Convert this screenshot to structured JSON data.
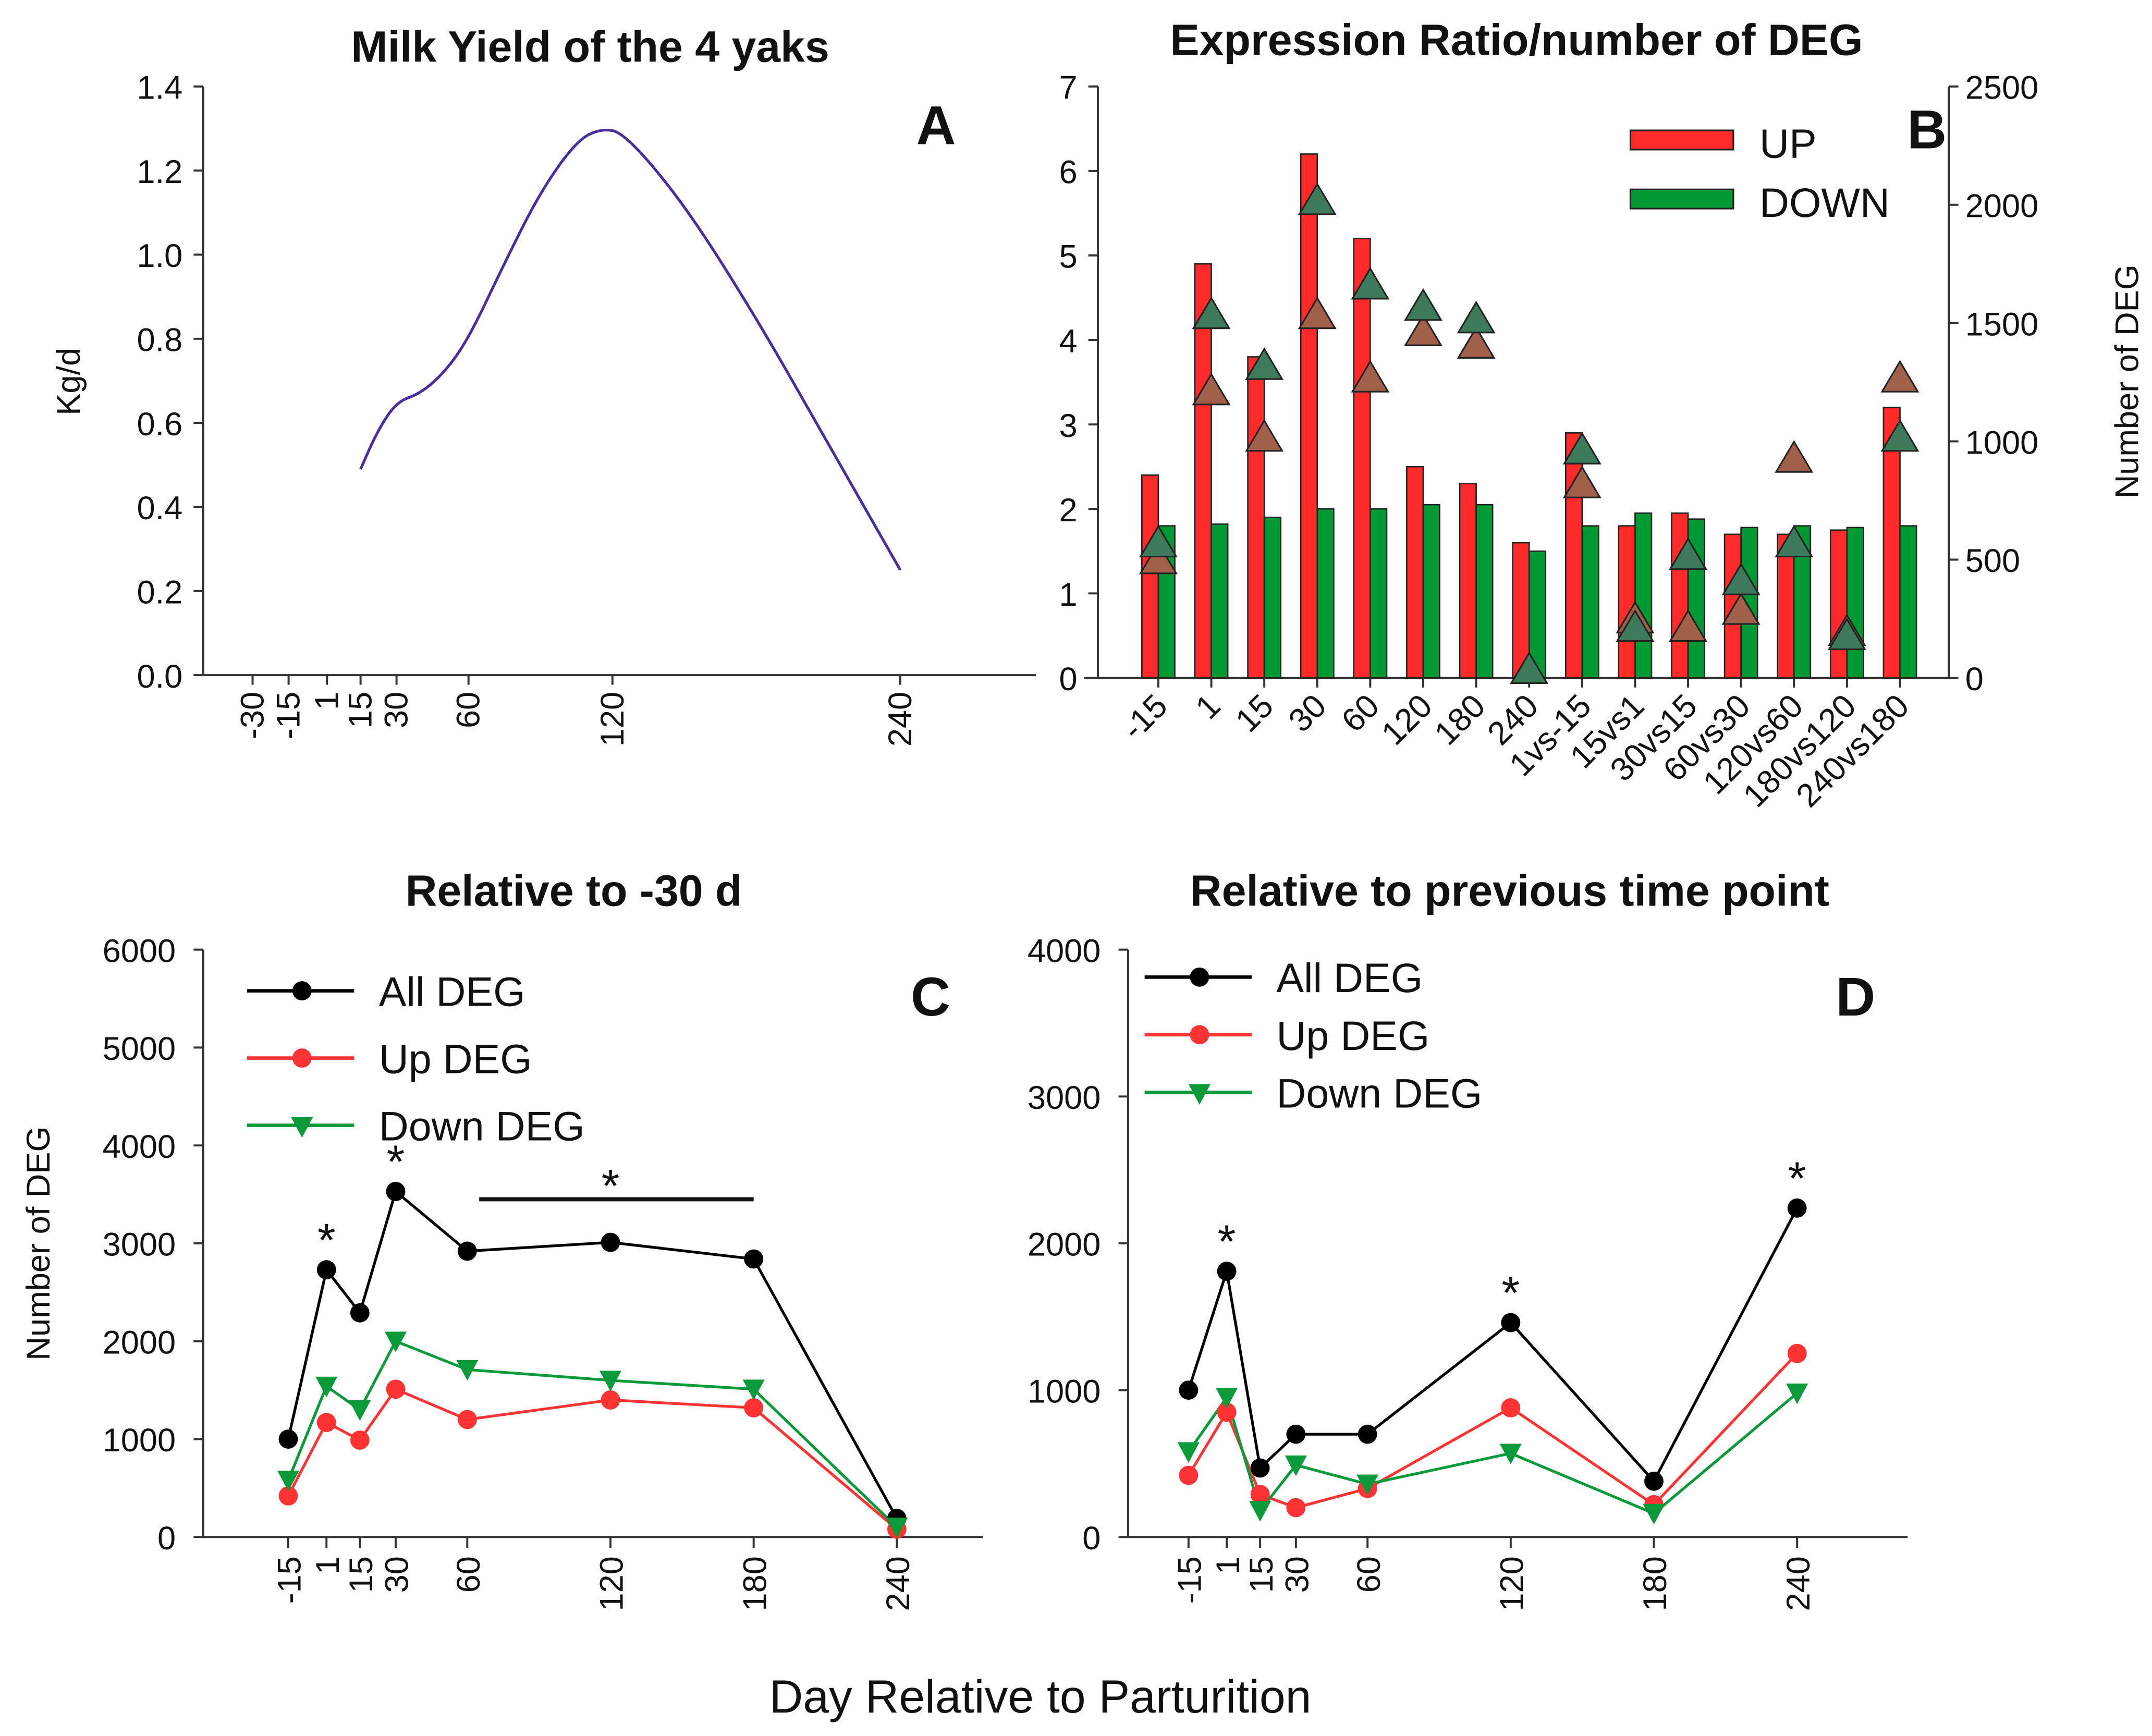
{
  "chart_data": [
    {
      "panel": "A",
      "type": "line",
      "title": "Milk Yield of the 4 yaks",
      "ylabel": "Kg/d",
      "xlabel": "",
      "ylim": [
        0,
        1.4
      ],
      "xlim": [
        -50,
        290
      ],
      "yticks": [
        "0.0",
        "0.2",
        "0.4",
        "0.6",
        "0.8",
        "1.0",
        "1.2",
        "1.4"
      ],
      "xticks": [
        "-30",
        "-15",
        "1",
        "15",
        "30",
        "60",
        "120",
        "240"
      ],
      "x": [
        15,
        22,
        30,
        40,
        50,
        60,
        75,
        90,
        105,
        115,
        125,
        150,
        180,
        210,
        240
      ],
      "y": [
        0.49,
        0.58,
        0.65,
        0.67,
        0.72,
        0.8,
        0.98,
        1.15,
        1.27,
        1.3,
        1.29,
        1.12,
        0.85,
        0.55,
        0.25
      ],
      "series_color": "#4b2e9e"
    },
    {
      "panel": "B",
      "type": "bar",
      "title": "Expression Ratio/number of DEG",
      "ylabel": "",
      "y2label": "Number of DEG",
      "ylim": [
        0,
        7
      ],
      "y2lim": [
        0,
        2500
      ],
      "yticks": [
        "0",
        "1",
        "2",
        "3",
        "4",
        "5",
        "6",
        "7"
      ],
      "y2ticks": [
        "0",
        "500",
        "1000",
        "1500",
        "2000",
        "2500"
      ],
      "categories": [
        "-15",
        "1",
        "15",
        "30",
        "60",
        "120",
        "180",
        "240",
        "1vs-15",
        "15vs1",
        "30vs15",
        "60vs30",
        "120vs60",
        "180vs120",
        "240vs180"
      ],
      "series": [
        {
          "name": "UP",
          "color": "#ff2a2a",
          "values": [
            2.4,
            4.9,
            3.8,
            6.2,
            5.2,
            2.5,
            2.3,
            1.6,
            2.9,
            1.8,
            1.95,
            1.7,
            1.7,
            1.75,
            3.2
          ]
        },
        {
          "name": "DOWN",
          "color": "#009933",
          "values": [
            1.8,
            1.82,
            1.9,
            2.0,
            2.0,
            2.05,
            2.05,
            1.5,
            1.8,
            1.95,
            1.88,
            1.78,
            1.8,
            1.78,
            1.8
          ]
        }
      ],
      "triangles_green": {
        "color": "#3d7a5a",
        "values": [
          571,
          1536,
          1321,
          2018,
          1661,
          1571,
          1518,
          36,
          964,
          214,
          518,
          411,
          571,
          179,
          1018
        ]
      },
      "triangles_brown": {
        "color": "#a0604a",
        "values": [
          500,
          1214,
          1018,
          1536,
          1268,
          1464,
          1411,
          null,
          821,
          250,
          214,
          286,
          929,
          196,
          1268
        ]
      },
      "legend": "top-right"
    },
    {
      "panel": "C",
      "type": "line",
      "title": "Relative to -30 d",
      "ylabel": "Number of DEG",
      "ylim": [
        0,
        6000
      ],
      "yticks": [
        "0",
        "1000",
        "2000",
        "3000",
        "4000",
        "5000",
        "6000"
      ],
      "x": [
        -15,
        1,
        15,
        30,
        60,
        120,
        180,
        240
      ],
      "xticks": [
        "-15",
        "1",
        "15",
        "30",
        "60",
        "120",
        "180",
        "240"
      ],
      "series": [
        {
          "name": "All DEG",
          "color": "#000000",
          "marker": "circle",
          "values": [
            1000,
            2730,
            2290,
            3530,
            2920,
            3010,
            2840,
            190
          ]
        },
        {
          "name": "Up DEG",
          "color": "#ff3333",
          "marker": "circle",
          "values": [
            420,
            1170,
            990,
            1510,
            1200,
            1400,
            1320,
            80
          ]
        },
        {
          "name": "Down DEG",
          "color": "#0a9a3a",
          "marker": "triangle-down",
          "values": [
            580,
            1540,
            1300,
            2000,
            1710,
            1600,
            1510,
            100
          ]
        }
      ],
      "annotations": [
        {
          "text": "*",
          "x": 1
        },
        {
          "text": "*",
          "x": 30
        },
        {
          "text": "*",
          "x": 120,
          "bar": [
            65,
            180
          ]
        }
      ],
      "legend": "top-left"
    },
    {
      "panel": "D",
      "type": "line",
      "title": "Relative to previous time point",
      "ylabel": "",
      "ylim": [
        0,
        4000
      ],
      "yticks": [
        "0",
        "1000",
        "2000",
        "3000",
        "4000"
      ],
      "x": [
        -15,
        1,
        15,
        30,
        60,
        120,
        180,
        240
      ],
      "xticks": [
        "-15",
        "1",
        "15",
        "30",
        "60",
        "120",
        "180",
        "240"
      ],
      "series": [
        {
          "name": "All DEG",
          "color": "#000000",
          "marker": "circle",
          "values": [
            1000,
            1810,
            470,
            700,
            700,
            1460,
            380,
            2240
          ]
        },
        {
          "name": "Up DEG",
          "color": "#ff3333",
          "marker": "circle",
          "values": [
            420,
            850,
            290,
            200,
            330,
            880,
            220,
            1250
          ]
        },
        {
          "name": "Down DEG",
          "color": "#0a9a3a",
          "marker": "triangle-down",
          "values": [
            580,
            950,
            180,
            490,
            360,
            570,
            160,
            980
          ]
        }
      ],
      "annotations": [
        {
          "text": "*",
          "x": 1
        },
        {
          "text": "*",
          "x": 120
        },
        {
          "text": "*",
          "x": 240
        }
      ],
      "legend": "top-left"
    }
  ],
  "shared_xlabel": "Day Relative to Parturition"
}
